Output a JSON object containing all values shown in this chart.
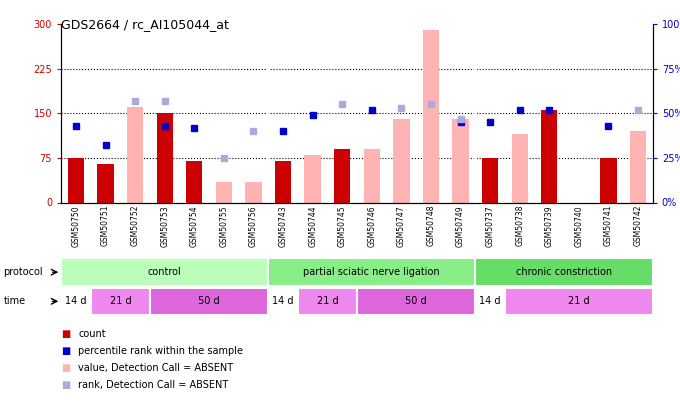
{
  "title": "GDS2664 / rc_AI105044_at",
  "samples": [
    "GSM50750",
    "GSM50751",
    "GSM50752",
    "GSM50753",
    "GSM50754",
    "GSM50755",
    "GSM50756",
    "GSM50743",
    "GSM50744",
    "GSM50745",
    "GSM50746",
    "GSM50747",
    "GSM50748",
    "GSM50749",
    "GSM50737",
    "GSM50738",
    "GSM50739",
    "GSM50740",
    "GSM50741",
    "GSM50742"
  ],
  "count_values": [
    75,
    65,
    null,
    150,
    70,
    null,
    null,
    70,
    null,
    90,
    null,
    null,
    null,
    null,
    75,
    null,
    155,
    null,
    75,
    null
  ],
  "count_absent": [
    null,
    null,
    160,
    null,
    null,
    35,
    35,
    null,
    80,
    null,
    90,
    140,
    290,
    140,
    null,
    115,
    null,
    null,
    null,
    120
  ],
  "rank_present": [
    43,
    32,
    null,
    43,
    42,
    null,
    null,
    40,
    49,
    null,
    52,
    null,
    null,
    45,
    45,
    52,
    52,
    null,
    43,
    null
  ],
  "rank_absent": [
    null,
    null,
    57,
    57,
    null,
    25,
    40,
    null,
    null,
    55,
    null,
    53,
    55,
    47,
    null,
    null,
    null,
    null,
    null,
    52
  ],
  "ylim_left": [
    0,
    300
  ],
  "ylim_right": [
    0,
    100
  ],
  "yticks_left": [
    0,
    75,
    150,
    225,
    300
  ],
  "yticks_right": [
    0,
    25,
    50,
    75,
    100
  ],
  "ytick_labels_left": [
    "0",
    "75",
    "150",
    "225",
    "300"
  ],
  "ytick_labels_right": [
    "0%",
    "25%",
    "50%",
    "75%",
    "100%"
  ],
  "left_color": "#cc0000",
  "right_color": "#0000cc",
  "bar_color_present": "#cc0000",
  "bar_color_absent": "#ffb3b3",
  "dot_color_present": "#0000cc",
  "dot_color_absent": "#aaaadd",
  "bg_color": "#ffffff",
  "plot_bg": "#ffffff",
  "prot_colors": [
    "#bbffbb",
    "#88ee88",
    "#66dd66"
  ],
  "prot_data": [
    [
      "control",
      0,
      7
    ],
    [
      "partial sciatic nerve ligation",
      7,
      14
    ],
    [
      "chronic constriction",
      14,
      20
    ]
  ],
  "time_data": [
    [
      "14 d",
      0,
      1,
      "#ffffff"
    ],
    [
      "21 d",
      1,
      3,
      "#ee88ee"
    ],
    [
      "50 d",
      3,
      7,
      "#dd66dd"
    ],
    [
      "14 d",
      7,
      8,
      "#ffffff"
    ],
    [
      "21 d",
      8,
      10,
      "#ee88ee"
    ],
    [
      "50 d",
      10,
      14,
      "#dd66dd"
    ],
    [
      "14 d",
      14,
      15,
      "#ffffff"
    ],
    [
      "21 d",
      15,
      20,
      "#ee88ee"
    ]
  ]
}
